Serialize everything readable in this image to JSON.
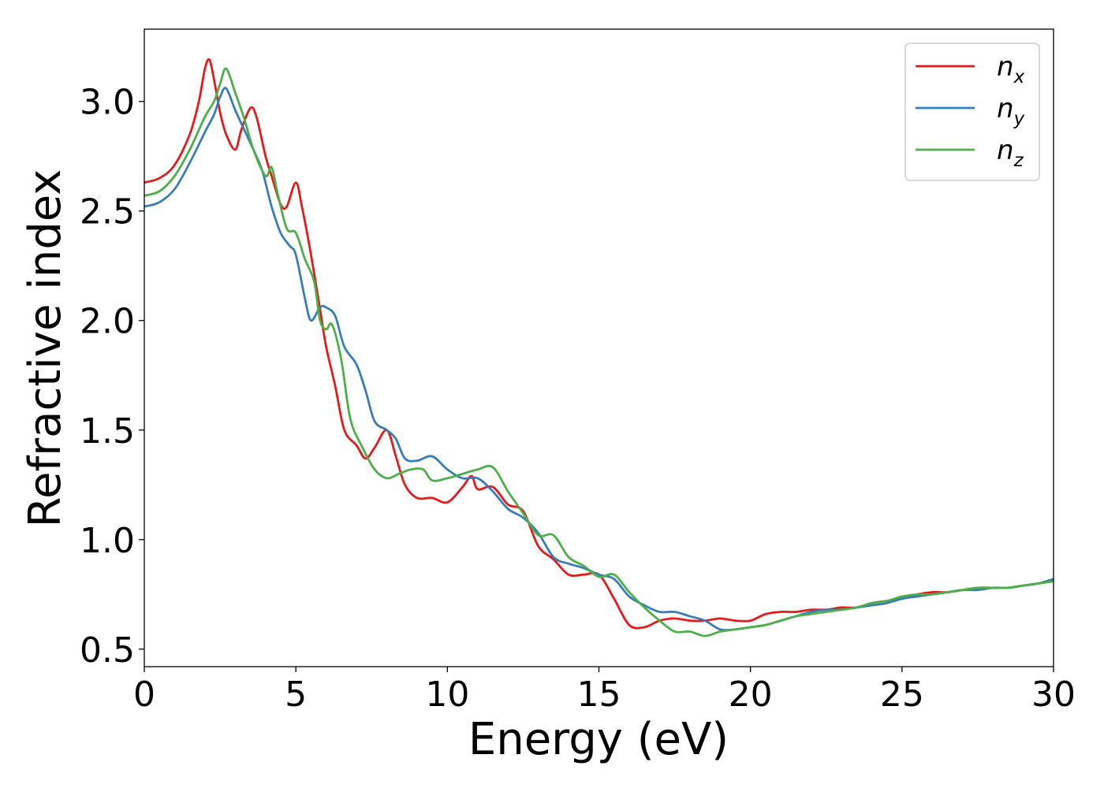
{
  "chart_data": {
    "type": "line",
    "title": "",
    "xlabel": "Energy (eV)",
    "ylabel": "Refractive index",
    "xlim": [
      0,
      30
    ],
    "ylim": [
      0.42,
      3.33
    ],
    "xticks": [
      0,
      5,
      10,
      15,
      20,
      25,
      30
    ],
    "xtick_labels": [
      "0",
      "5",
      "10",
      "15",
      "20",
      "25",
      "30"
    ],
    "yticks": [
      0.5,
      1.0,
      1.5,
      2.0,
      2.5,
      3.0
    ],
    "ytick_labels": [
      "0.5",
      "1.0",
      "1.5",
      "2.0",
      "2.5",
      "3.0"
    ],
    "grid": false,
    "legend_position": "top-right",
    "series": [
      {
        "name": "n_x",
        "label_base": "n",
        "label_sub": "x",
        "color": "#e41a1c",
        "x": [
          0,
          0.5,
          1,
          1.5,
          1.8,
          2,
          2.15,
          2.3,
          2.5,
          2.7,
          3,
          3.2,
          3.5,
          3.7,
          4,
          4.2,
          4.5,
          4.7,
          5,
          5.2,
          5.5,
          5.8,
          6,
          6.3,
          6.6,
          7,
          7.3,
          7.6,
          8,
          8.3,
          8.6,
          9,
          9.5,
          10,
          10.5,
          10.8,
          11,
          11.5,
          12,
          12.5,
          13,
          13.5,
          14,
          14.5,
          15,
          15.5,
          16,
          16.5,
          17,
          17.5,
          18,
          18.5,
          19,
          19.5,
          20,
          20.5,
          21,
          21.5,
          22,
          22.5,
          23,
          23.5,
          24,
          24.5,
          25,
          25.5,
          26,
          26.5,
          27,
          27.5,
          28,
          28.5,
          29,
          29.5,
          30
        ],
        "y": [
          2.63,
          2.65,
          2.71,
          2.85,
          3.0,
          3.15,
          3.19,
          3.1,
          2.95,
          2.85,
          2.78,
          2.87,
          2.97,
          2.93,
          2.75,
          2.66,
          2.53,
          2.52,
          2.63,
          2.52,
          2.3,
          2.05,
          1.88,
          1.7,
          1.5,
          1.43,
          1.37,
          1.42,
          1.5,
          1.38,
          1.25,
          1.19,
          1.19,
          1.17,
          1.24,
          1.29,
          1.23,
          1.24,
          1.16,
          1.13,
          0.97,
          0.91,
          0.84,
          0.84,
          0.84,
          0.73,
          0.61,
          0.6,
          0.63,
          0.64,
          0.63,
          0.63,
          0.64,
          0.63,
          0.63,
          0.66,
          0.67,
          0.67,
          0.68,
          0.68,
          0.69,
          0.69,
          0.71,
          0.72,
          0.73,
          0.75,
          0.76,
          0.76,
          0.77,
          0.78,
          0.78,
          0.78,
          0.79,
          0.8,
          0.81
        ]
      },
      {
        "name": "n_y",
        "label_base": "n",
        "label_sub": "y",
        "color": "#377eb8",
        "x": [
          0,
          0.5,
          1,
          1.5,
          2,
          2.3,
          2.5,
          2.7,
          3,
          3.3,
          3.6,
          3.9,
          4.2,
          4.5,
          4.8,
          5,
          5.3,
          5.5,
          5.8,
          6,
          6.3,
          6.6,
          7,
          7.3,
          7.6,
          8,
          8.3,
          8.6,
          9,
          9.5,
          10,
          10.5,
          11,
          11.5,
          12,
          12.5,
          13,
          13.5,
          14,
          14.5,
          15,
          15.5,
          16,
          16.5,
          17,
          17.5,
          18,
          18.5,
          19,
          19.5,
          20,
          20.5,
          21,
          21.5,
          22,
          22.5,
          23,
          23.5,
          24,
          24.5,
          25,
          25.5,
          26,
          26.5,
          27,
          27.5,
          28,
          28.5,
          29,
          29.5,
          30
        ],
        "y": [
          2.52,
          2.54,
          2.6,
          2.72,
          2.86,
          2.94,
          3.02,
          3.06,
          2.96,
          2.87,
          2.78,
          2.68,
          2.52,
          2.4,
          2.34,
          2.3,
          2.1,
          2.0,
          2.06,
          2.06,
          2.02,
          1.88,
          1.8,
          1.68,
          1.54,
          1.5,
          1.46,
          1.37,
          1.36,
          1.38,
          1.32,
          1.28,
          1.28,
          1.22,
          1.14,
          1.1,
          1.03,
          0.92,
          0.89,
          0.87,
          0.84,
          0.82,
          0.74,
          0.7,
          0.67,
          0.67,
          0.65,
          0.63,
          0.59,
          0.59,
          0.6,
          0.61,
          0.63,
          0.65,
          0.67,
          0.68,
          0.68,
          0.69,
          0.7,
          0.71,
          0.73,
          0.74,
          0.75,
          0.76,
          0.77,
          0.77,
          0.78,
          0.78,
          0.79,
          0.8,
          0.82
        ]
      },
      {
        "name": "n_z",
        "label_base": "n",
        "label_sub": "z",
        "color": "#4daf4a",
        "x": [
          0,
          0.5,
          1,
          1.5,
          2,
          2.3,
          2.5,
          2.7,
          3,
          3.3,
          3.6,
          4,
          4.2,
          4.4,
          4.7,
          5,
          5.3,
          5.6,
          5.8,
          6,
          6.2,
          6.5,
          6.8,
          7.2,
          7.6,
          8,
          8.4,
          8.8,
          9.2,
          9.5,
          10,
          10.5,
          11,
          11.5,
          12,
          12.5,
          13,
          13.5,
          14,
          14.5,
          15,
          15.5,
          16,
          16.5,
          17,
          17.5,
          18,
          18.5,
          19,
          19.5,
          20,
          20.5,
          21,
          21.5,
          22,
          22.5,
          23,
          23.5,
          24,
          24.5,
          25,
          25.5,
          26,
          26.5,
          27,
          27.5,
          28,
          28.5,
          29,
          29.5,
          30
        ],
        "y": [
          2.57,
          2.59,
          2.66,
          2.78,
          2.93,
          3.0,
          3.08,
          3.15,
          3.04,
          2.92,
          2.78,
          2.66,
          2.7,
          2.58,
          2.42,
          2.4,
          2.28,
          2.18,
          2.0,
          1.96,
          1.98,
          1.82,
          1.55,
          1.42,
          1.32,
          1.28,
          1.3,
          1.32,
          1.32,
          1.27,
          1.28,
          1.3,
          1.32,
          1.33,
          1.22,
          1.12,
          1.02,
          1.02,
          0.92,
          0.88,
          0.83,
          0.84,
          0.76,
          0.69,
          0.63,
          0.58,
          0.58,
          0.56,
          0.58,
          0.59,
          0.6,
          0.61,
          0.63,
          0.65,
          0.66,
          0.67,
          0.68,
          0.69,
          0.71,
          0.72,
          0.74,
          0.75,
          0.75,
          0.76,
          0.77,
          0.78,
          0.78,
          0.78,
          0.79,
          0.8,
          0.81
        ]
      }
    ]
  }
}
